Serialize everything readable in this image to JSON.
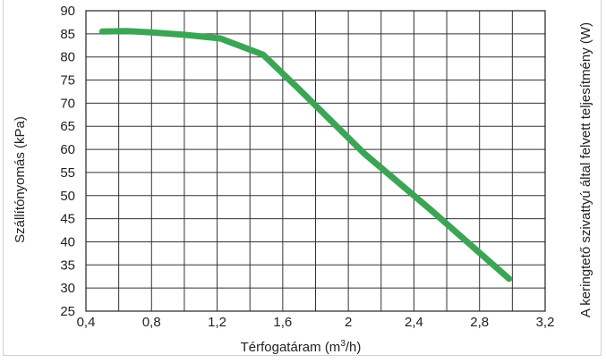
{
  "chart_data": {
    "type": "line",
    "xlabel_main": "Térfogatáram (m",
    "xlabel_sup": "3",
    "xlabel_end": "/h)",
    "ylabel": "Szállítónyomás (kPa)",
    "y2label": "A keringtető szivattyú által felvett teljesítmény (W)",
    "xlim": [
      0.4,
      3.2
    ],
    "ylim": [
      25,
      90
    ],
    "x_ticks": [
      0.4,
      0.8,
      1.2,
      1.6,
      2,
      2.4,
      2.8,
      3.2
    ],
    "x_tick_labels": [
      "0,4",
      "0,8",
      "1,2",
      "1,6",
      "2",
      "2,4",
      "2,8",
      "3,2"
    ],
    "y_ticks": [
      25,
      30,
      35,
      40,
      45,
      50,
      55,
      60,
      65,
      70,
      75,
      80,
      85,
      90
    ],
    "y_tick_labels": [
      "25",
      "30",
      "35",
      "40",
      "45",
      "50",
      "55",
      "60",
      "65",
      "70",
      "75",
      "80",
      "85",
      "90"
    ],
    "x_grid": [
      0.4,
      0.6,
      0.8,
      1.0,
      1.2,
      1.4,
      1.6,
      1.8,
      2.0,
      2.2,
      2.4,
      2.6,
      2.8,
      3.0,
      3.2
    ],
    "grid": true,
    "line_color": "#3aa655",
    "series": [
      {
        "x": [
          0.5,
          0.65,
          0.8,
          1.0,
          1.22,
          1.48,
          1.7,
          2.1,
          2.5,
          2.98
        ],
        "y": [
          85.5,
          85.6,
          85.3,
          84.8,
          84,
          80.5,
          73,
          59,
          47,
          32
        ]
      }
    ]
  }
}
